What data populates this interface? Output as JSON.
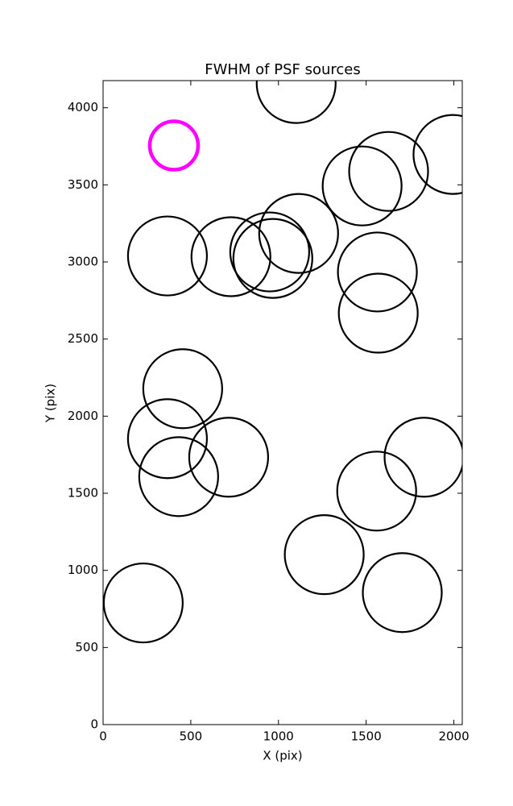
{
  "chart_data": {
    "type": "scatter",
    "title": "FWHM of PSF sources",
    "xlabel": "X (pix)",
    "ylabel": "Y (pix)",
    "xlim": [
      0,
      2048
    ],
    "ylim": [
      0,
      4176
    ],
    "xticks": [
      0,
      500,
      1000,
      1500,
      2000
    ],
    "yticks": [
      0,
      500,
      1000,
      1500,
      2000,
      2500,
      3000,
      3500,
      4000
    ],
    "grid": false,
    "series": [
      {
        "color": "#000000",
        "x": [
          1101,
          1995,
          1628,
          1477,
          1115,
          950,
          367,
          729,
          968,
          1564,
          1569,
          454,
          367,
          716,
          1830,
          431,
          1560,
          1261,
          1706,
          229
        ],
        "values": [
          4157,
          3697,
          3587,
          3493,
          3185,
          3065,
          3039,
          3034,
          3023,
          2935,
          2668,
          2178,
          1854,
          1734,
          1734,
          1608,
          1514,
          1102,
          856,
          789
        ]
      },
      {
        "color": "#ff00ff",
        "x": [
          404
        ],
        "values": [
          3755
        ]
      }
    ]
  }
}
